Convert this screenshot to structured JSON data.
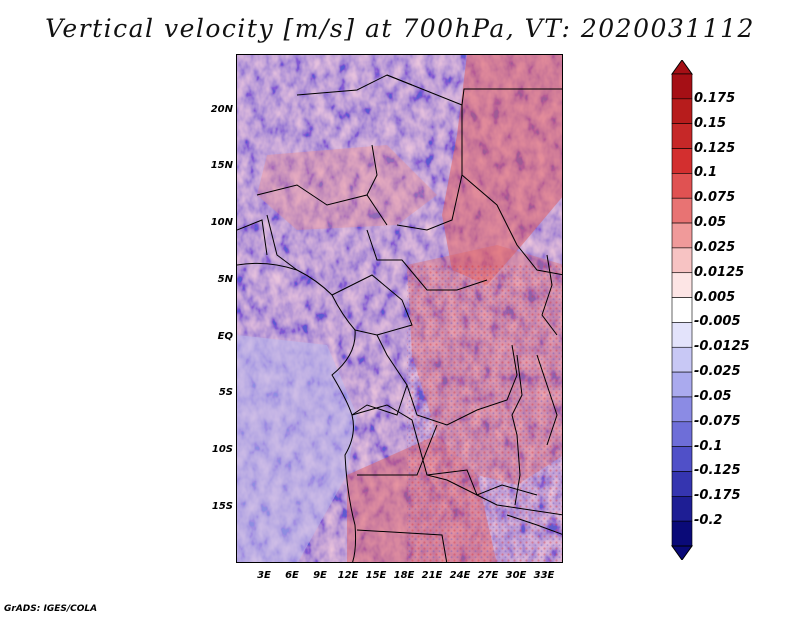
{
  "title": "Vertical velocity [m/s] at 700hPa, VT: 2020031112",
  "credit": "GrADS: IGES/COLA",
  "lat_labels": [
    "20N",
    "15N",
    "10N",
    "5N",
    "EQ",
    "5S",
    "10S",
    "15S"
  ],
  "lon_labels": [
    "3E",
    "6E",
    "9E",
    "12E",
    "15E",
    "18E",
    "21E",
    "24E",
    "27E",
    "30E",
    "33E"
  ],
  "colorbar": {
    "labels": [
      "0.175",
      "0.15",
      "0.125",
      "0.1",
      "0.075",
      "0.05",
      "0.025",
      "0.0125",
      "0.005",
      "-0.005",
      "-0.0125",
      "-0.025",
      "-0.05",
      "-0.075",
      "-0.1",
      "-0.125",
      "-0.175",
      "-0.2"
    ],
    "colors": [
      "#a50f15",
      "#b71c1c",
      "#c62828",
      "#d32f2f",
      "#e05252",
      "#e87373",
      "#f09a9a",
      "#f7c3c3",
      "#fde5e5",
      "#ffffff",
      "#e3e3fb",
      "#c8c8f5",
      "#aaaaee",
      "#8b8be4",
      "#6e6ed8",
      "#5050c8",
      "#3535b0",
      "#1e1e94",
      "#0a0a78"
    ]
  }
}
